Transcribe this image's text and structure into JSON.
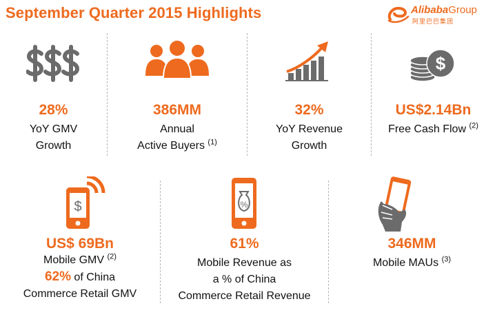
{
  "header": {
    "title": "September Quarter 2015 Highlights",
    "logo_word": "Alibaba",
    "logo_group": "Group",
    "logo_chinese": "阿里巴巴集团",
    "logo_mark": "e"
  },
  "colors": {
    "accent": "#ee6a1e",
    "icon_gray": "#6b6b6b",
    "divider": "#b5b5b5"
  },
  "row1": [
    {
      "icon": "dollar-signs-icon",
      "value": "28%",
      "label_lines": [
        "YoY GMV",
        "Growth"
      ],
      "footnote": ""
    },
    {
      "icon": "people-group-icon",
      "value": "386MM",
      "label_lines": [
        "Annual",
        "Active Buyers"
      ],
      "footnote": "(1)"
    },
    {
      "icon": "growth-chart-icon",
      "value": "32%",
      "label_lines": [
        "YoY Revenue",
        "Growth"
      ],
      "footnote": ""
    },
    {
      "icon": "coin-stack-icon",
      "value": "US$2.14Bn",
      "label_lines": [
        "Free Cash Flow"
      ],
      "footnote": "(2)"
    }
  ],
  "row2": [
    {
      "icon": "mobile-payment-icon",
      "value": "US$ 69Bn",
      "label_lines": [
        "Mobile GMV"
      ],
      "footnote": "(2)",
      "extra_value": "62%",
      "extra_text": " of China",
      "extra_line": "Commerce Retail GMV"
    },
    {
      "icon": "mobile-percent-icon",
      "value": "61%",
      "label_lines": [
        "Mobile Revenue as",
        "a % of China",
        "Commerce Retail Revenue"
      ],
      "footnote": ""
    },
    {
      "icon": "hand-phone-icon",
      "value": "346MM",
      "label_lines": [
        "Mobile MAUs"
      ],
      "footnote": "(3)"
    }
  ]
}
